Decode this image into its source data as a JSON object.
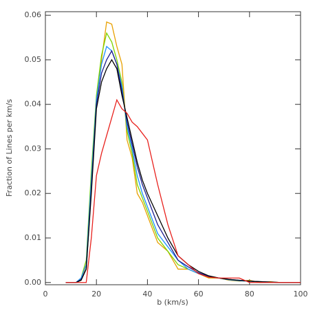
{
  "chart_data": {
    "type": "line",
    "x_label": "b (km/s)",
    "y_label": "Fraction of Lines per km/s",
    "xlim": [
      0,
      100
    ],
    "xticks": [
      0,
      20,
      40,
      60,
      80,
      100
    ],
    "ylim": [
      -0.0005,
      0.0608
    ],
    "yticks": [
      {
        "value": 0,
        "label": "0.00"
      },
      {
        "value": 0.01,
        "label": "0.01"
      },
      {
        "value": 0.02,
        "label": "0.02"
      },
      {
        "value": 0.03,
        "label": "0.03"
      },
      {
        "value": 0.04,
        "label": "0.04"
      },
      {
        "value": 0.05,
        "label": "0.05"
      },
      {
        "value": 0.06,
        "label": "0.06"
      }
    ],
    "grid": false,
    "x": [
      8,
      10,
      12,
      14,
      16,
      18,
      20,
      22,
      24,
      26,
      28,
      30,
      32,
      34,
      36,
      38,
      40,
      44,
      48,
      52,
      56,
      60,
      64,
      68,
      72,
      76,
      80,
      84,
      88,
      92,
      96,
      100
    ],
    "series": [
      {
        "color": "#e8a000",
        "values": [
          0,
          0,
          0,
          0.0005,
          0.004,
          0.022,
          0.04,
          0.05,
          0.0585,
          0.058,
          0.053,
          0.049,
          0.032,
          0.028,
          0.02,
          0.018,
          0.015,
          0.009,
          0.007,
          0.003,
          0.003,
          0.002,
          0.001,
          0.001,
          0.0005,
          0.0003,
          0.0005,
          0,
          0.0002,
          0,
          0,
          0
        ]
      },
      {
        "color": "#7cd300",
        "values": [
          0,
          0,
          0,
          0.001,
          0.005,
          0.025,
          0.042,
          0.051,
          0.056,
          0.054,
          0.05,
          0.045,
          0.034,
          0.029,
          0.022,
          0.019,
          0.016,
          0.01,
          0.007,
          0.004,
          0.003,
          0.002,
          0.0012,
          0.001,
          0.0006,
          0.0004,
          0.0003,
          0.0002,
          0.0001,
          0,
          0,
          0
        ]
      },
      {
        "color": "#1e90ff",
        "values": [
          0,
          0,
          0,
          0.001,
          0.004,
          0.023,
          0.041,
          0.049,
          0.053,
          0.052,
          0.049,
          0.044,
          0.035,
          0.03,
          0.024,
          0.02,
          0.017,
          0.011,
          0.008,
          0.005,
          0.003,
          0.002,
          0.0013,
          0.001,
          0.0006,
          0.0004,
          0.0003,
          0.0002,
          0.0001,
          0,
          0,
          0
        ]
      },
      {
        "color": "#1c1c8c",
        "values": [
          0,
          0,
          0,
          0.0007,
          0.003,
          0.021,
          0.04,
          0.047,
          0.05,
          0.052,
          0.049,
          0.043,
          0.036,
          0.031,
          0.026,
          0.022,
          0.019,
          0.013,
          0.009,
          0.005,
          0.0035,
          0.0022,
          0.0014,
          0.001,
          0.0007,
          0.0005,
          0.0003,
          0.0002,
          0.0001,
          0,
          0,
          0
        ]
      },
      {
        "color": "#000000",
        "values": [
          0,
          0,
          0,
          0.0005,
          0.003,
          0.02,
          0.039,
          0.045,
          0.048,
          0.05,
          0.048,
          0.042,
          0.037,
          0.032,
          0.027,
          0.023,
          0.02,
          0.015,
          0.01,
          0.006,
          0.004,
          0.0025,
          0.0015,
          0.001,
          0.0007,
          0.0005,
          0.0003,
          0.0002,
          0.0001,
          0,
          0,
          0
        ]
      },
      {
        "color": "#e8201c",
        "values": [
          0,
          0,
          0,
          0,
          0,
          0.01,
          0.024,
          0.029,
          0.033,
          0.037,
          0.041,
          0.039,
          0.038,
          0.036,
          0.035,
          0.0335,
          0.032,
          0.022,
          0.013,
          0.006,
          0.004,
          0.002,
          0.0012,
          0.001,
          0.001,
          0.001,
          0,
          0,
          0,
          0,
          0,
          0
        ]
      }
    ]
  }
}
